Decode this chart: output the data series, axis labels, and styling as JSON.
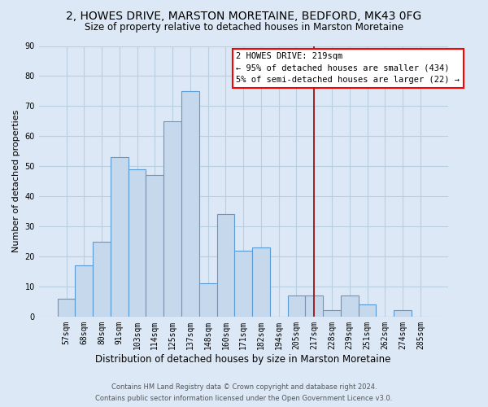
{
  "title": "2, HOWES DRIVE, MARSTON MORETAINE, BEDFORD, MK43 0FG",
  "subtitle": "Size of property relative to detached houses in Marston Moretaine",
  "xlabel": "Distribution of detached houses by size in Marston Moretaine",
  "ylabel": "Number of detached properties",
  "bar_labels": [
    "57sqm",
    "68sqm",
    "80sqm",
    "91sqm",
    "103sqm",
    "114sqm",
    "125sqm",
    "137sqm",
    "148sqm",
    "160sqm",
    "171sqm",
    "182sqm",
    "194sqm",
    "205sqm",
    "217sqm",
    "228sqm",
    "239sqm",
    "251sqm",
    "262sqm",
    "274sqm",
    "285sqm"
  ],
  "bar_heights": [
    6,
    17,
    25,
    53,
    49,
    47,
    65,
    75,
    11,
    34,
    22,
    23,
    0,
    7,
    7,
    2,
    7,
    4,
    0,
    2,
    0
  ],
  "bar_color": "#c5d8ec",
  "bar_edge_color": "#5b9bd5",
  "vline_x": 14,
  "vline_color": "#990000",
  "annotation_box_text": "2 HOWES DRIVE: 219sqm\n← 95% of detached houses are smaller (434)\n5% of semi-detached houses are larger (22) →",
  "ylim": [
    0,
    90
  ],
  "yticks": [
    0,
    10,
    20,
    30,
    40,
    50,
    60,
    70,
    80,
    90
  ],
  "background_color": "#dce8f5",
  "plot_bg_color": "#dce8f5",
  "footer_line1": "Contains HM Land Registry data © Crown copyright and database right 2024.",
  "footer_line2": "Contains public sector information licensed under the Open Government Licence v3.0.",
  "title_fontsize": 10,
  "subtitle_fontsize": 8.5,
  "xlabel_fontsize": 8.5,
  "ylabel_fontsize": 8,
  "annotation_fontsize": 7.5,
  "footer_fontsize": 6,
  "grid_color": "#b8cfe0",
  "tick_label_fontsize": 7
}
